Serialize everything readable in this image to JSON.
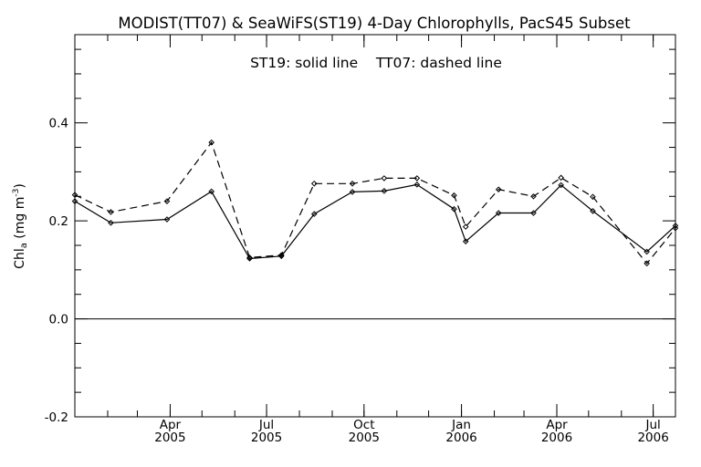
{
  "chart_data": {
    "type": "line",
    "title": "MODIST(TT07) & SeaWiFS(ST19) 4-Day Chlorophylls, PacS45 Subset",
    "annotation": "ST19: solid line    TT07: dashed line",
    "ylabel": {
      "main": "Chl",
      "sub": "a",
      "unit_open": " (mg m",
      "sup": "-3",
      "unit_close": ")"
    },
    "ylim": [
      -0.2,
      0.58
    ],
    "y_ticks": [
      {
        "value": -0.2,
        "label": "-0.2"
      },
      {
        "value": 0.0,
        "label": "0.0"
      },
      {
        "value": 0.2,
        "label": "0.2"
      },
      {
        "value": 0.4,
        "label": "0.4"
      }
    ],
    "xlim": [
      "2005-01-01",
      "2006-07-22"
    ],
    "x_ticks": [
      {
        "date": "2005-04-01",
        "month": "Apr",
        "year": "2005"
      },
      {
        "date": "2005-07-01",
        "month": "Jul",
        "year": "2005"
      },
      {
        "date": "2005-10-01",
        "month": "Oct",
        "year": "2005"
      },
      {
        "date": "2006-01-01",
        "month": "Jan",
        "year": "2006"
      },
      {
        "date": "2006-04-01",
        "month": "Apr",
        "year": "2006"
      },
      {
        "date": "2006-07-01",
        "month": "Jul",
        "year": "2006"
      }
    ],
    "reference_line": 0.0,
    "series": [
      {
        "style": "solid",
        "points": [
          {
            "x": "2005-01-01",
            "y": 0.24
          },
          {
            "x": "2005-02-04",
            "y": 0.196
          },
          {
            "x": "2005-03-29",
            "y": 0.203
          },
          {
            "x": "2005-05-10",
            "y": 0.26
          },
          {
            "x": "2005-06-15",
            "y": 0.123
          },
          {
            "x": "2005-07-15",
            "y": 0.128
          },
          {
            "x": "2005-08-15",
            "y": 0.214
          },
          {
            "x": "2005-09-20",
            "y": 0.259
          },
          {
            "x": "2005-10-20",
            "y": 0.261
          },
          {
            "x": "2005-11-20",
            "y": 0.274
          },
          {
            "x": "2005-12-25",
            "y": 0.224
          },
          {
            "x": "2006-01-05",
            "y": 0.158
          },
          {
            "x": "2006-02-05",
            "y": 0.216
          },
          {
            "x": "2006-03-10",
            "y": 0.216
          },
          {
            "x": "2006-04-05",
            "y": 0.273
          },
          {
            "x": "2006-05-05",
            "y": 0.22
          },
          {
            "x": "2006-06-25",
            "y": 0.137
          },
          {
            "x": "2006-07-22",
            "y": 0.19
          }
        ]
      },
      {
        "style": "dashed",
        "points": [
          {
            "x": "2005-01-01",
            "y": 0.253
          },
          {
            "x": "2005-02-04",
            "y": 0.218
          },
          {
            "x": "2005-03-29",
            "y": 0.24
          },
          {
            "x": "2005-05-10",
            "y": 0.36
          },
          {
            "x": "2005-06-15",
            "y": 0.125
          },
          {
            "x": "2005-07-15",
            "y": 0.13
          },
          {
            "x": "2005-08-15",
            "y": 0.276
          },
          {
            "x": "2005-09-20",
            "y": 0.276
          },
          {
            "x": "2005-10-20",
            "y": 0.287
          },
          {
            "x": "2005-11-20",
            "y": 0.287
          },
          {
            "x": "2005-12-25",
            "y": 0.252
          },
          {
            "x": "2006-01-05",
            "y": 0.188
          },
          {
            "x": "2006-02-05",
            "y": 0.264
          },
          {
            "x": "2006-03-10",
            "y": 0.25
          },
          {
            "x": "2006-04-05",
            "y": 0.288
          },
          {
            "x": "2006-05-05",
            "y": 0.249
          },
          {
            "x": "2006-06-25",
            "y": 0.113
          },
          {
            "x": "2006-07-22",
            "y": 0.185
          }
        ]
      }
    ],
    "grid": false,
    "colors": {
      "line": "#000000",
      "background": "#ffffff"
    }
  }
}
